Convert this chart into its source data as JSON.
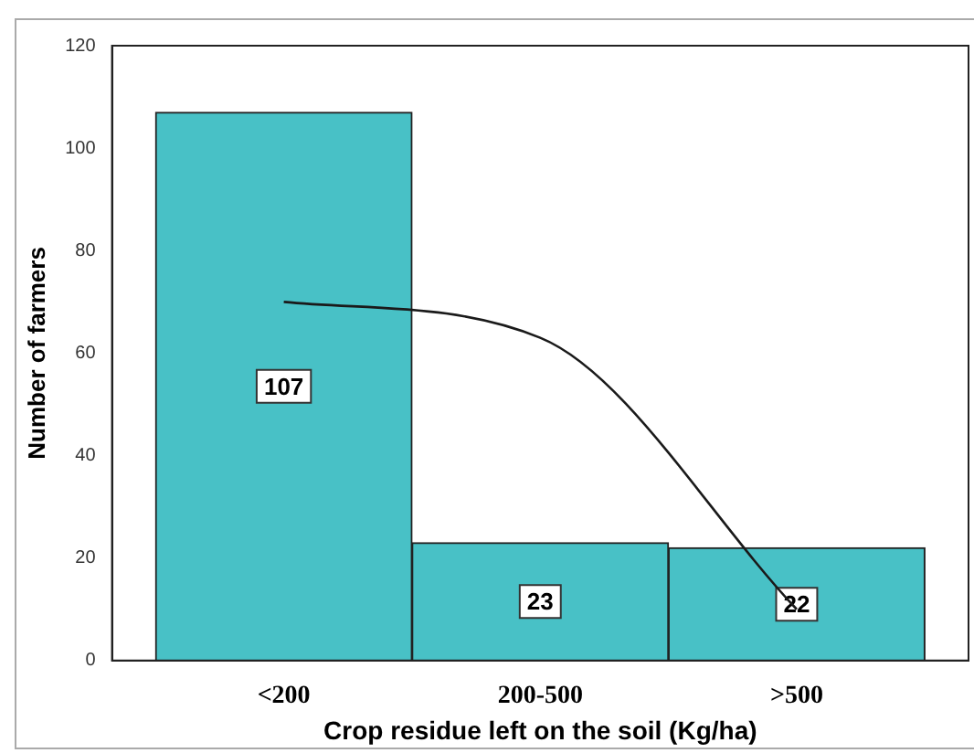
{
  "chart_data": {
    "type": "bar",
    "xlabel": "Crop residue left on the soil (Kg/ha)",
    "ylabel": "Number of farmers",
    "categories": [
      "<200",
      "200-500",
      ">500"
    ],
    "series": [
      {
        "color": "#48c1c6",
        "values": [
          107,
          23,
          22
        ],
        "value_labels": [
          "107",
          "23",
          "22"
        ]
      },
      {
        "type": "line",
        "color": "#1a1a1a",
        "values": [
          70,
          63,
          10
        ]
      }
    ],
    "ylim": [
      0,
      120
    ],
    "yticks": [
      0,
      20,
      40,
      60,
      80,
      100,
      120
    ],
    "grid": false,
    "legend": false,
    "marker": "none",
    "line_style": "solid"
  }
}
